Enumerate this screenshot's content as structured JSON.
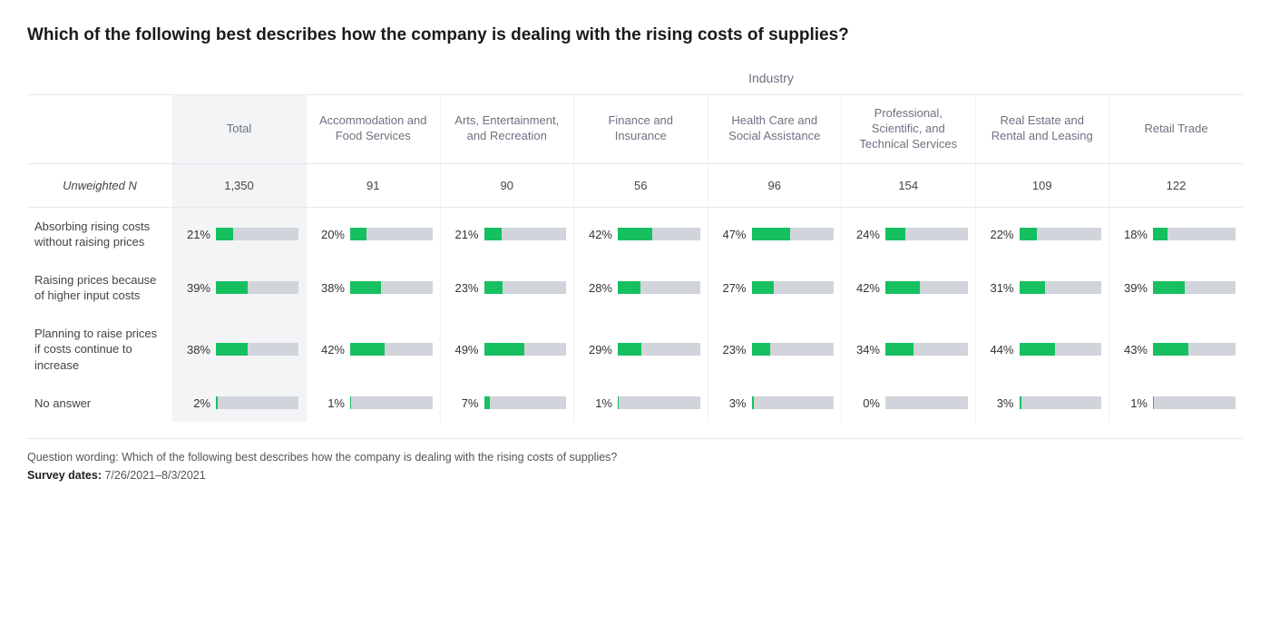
{
  "title": "Which of the following best describes how the company is dealing with the rising costs of supplies?",
  "super_header": "Industry",
  "colors": {
    "bar_fill": "#16c060",
    "bar_track": "#d1d5db",
    "total_bg": "#f3f4f6",
    "border": "#e5e7eb",
    "text_muted": "#6b7280"
  },
  "columns": [
    {
      "key": "total",
      "label": "Total",
      "is_total": true
    },
    {
      "key": "accom",
      "label": "Accommodation and Food Services"
    },
    {
      "key": "arts",
      "label": "Arts, Entertainment, and Recreation"
    },
    {
      "key": "fin",
      "label": "Finance and Insurance"
    },
    {
      "key": "health",
      "label": "Health Care and Social Assistance"
    },
    {
      "key": "prof",
      "label": "Professional, Scientific, and Technical Services"
    },
    {
      "key": "real",
      "label": "Real Estate and Rental and Leasing"
    },
    {
      "key": "retail",
      "label": "Retail Trade"
    }
  ],
  "unweighted_label": "Unweighted N",
  "unweighted_n": {
    "total": "1,350",
    "accom": "91",
    "arts": "90",
    "fin": "56",
    "health": "96",
    "prof": "154",
    "real": "109",
    "retail": "122"
  },
  "rows": [
    {
      "label": "Absorbing rising costs without raising prices",
      "values": {
        "total": 21,
        "accom": 20,
        "arts": 21,
        "fin": 42,
        "health": 47,
        "prof": 24,
        "real": 22,
        "retail": 18
      }
    },
    {
      "label": "Raising prices because of higher input costs",
      "values": {
        "total": 39,
        "accom": 38,
        "arts": 23,
        "fin": 28,
        "health": 27,
        "prof": 42,
        "real": 31,
        "retail": 39
      }
    },
    {
      "label": "Planning to raise prices if costs continue to increase",
      "values": {
        "total": 38,
        "accom": 42,
        "arts": 49,
        "fin": 29,
        "health": 23,
        "prof": 34,
        "real": 44,
        "retail": 43
      }
    },
    {
      "label": "No answer",
      "values": {
        "total": 2,
        "accom": 1,
        "arts": 7,
        "fin": 1,
        "health": 3,
        "prof": 0,
        "real": 3,
        "retail": 1
      }
    }
  ],
  "footer": {
    "wording_label": "Question wording:",
    "wording_text": "Which of the following best describes how the company is dealing with the rising costs of supplies?",
    "dates_label": "Survey dates:",
    "dates_text": "7/26/2021–8/3/2021"
  },
  "bar_max_pct": 100
}
